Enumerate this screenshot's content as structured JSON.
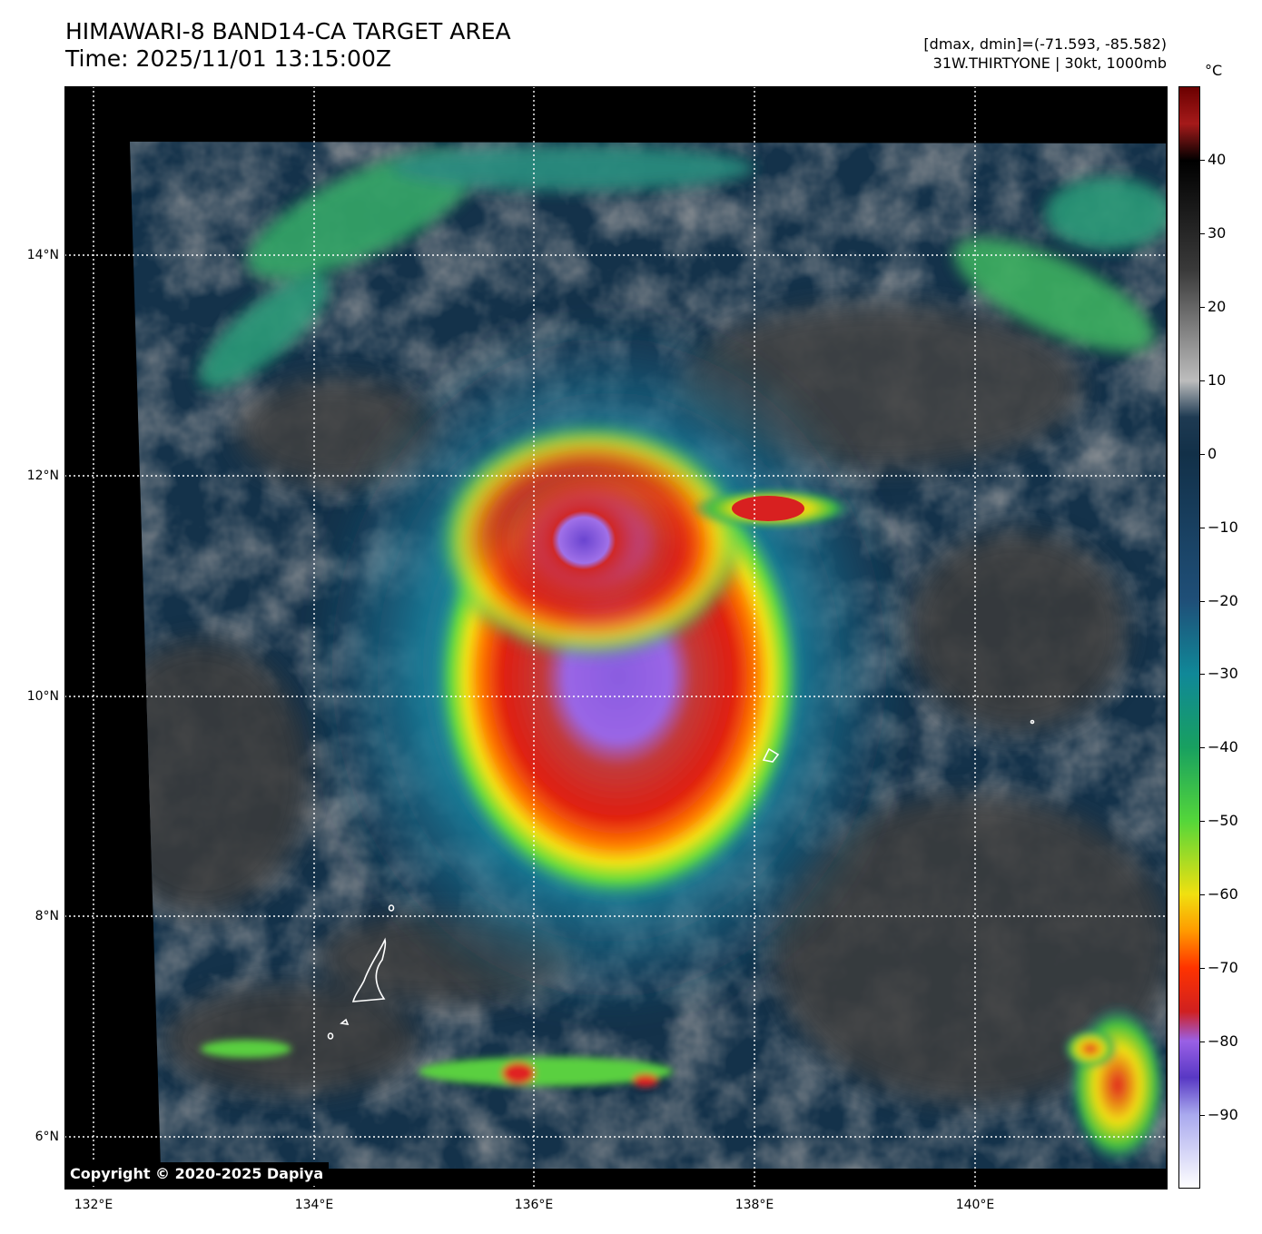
{
  "header": {
    "title_line1": "HIMAWARI-8 BAND14-CA TARGET AREA",
    "title_line2": "Time: 2025/11/01 13:15:00Z",
    "info_line1": "[dmax, dmin]=(-71.593, -85.582)",
    "info_line2": "31W.THIRTYONE | 30kt, 1000mb"
  },
  "axes": {
    "lat_labels": [
      "14°N",
      "12°N",
      "10°N",
      "8°N",
      "6°N"
    ],
    "lon_labels": [
      "132°E",
      "134°E",
      "136°E",
      "138°E",
      "140°E"
    ]
  },
  "colorbar": {
    "unit": "°C",
    "ticks": [
      "40",
      "30",
      "20",
      "10",
      "0",
      "−10",
      "−20",
      "−30",
      "−40",
      "−50",
      "−60",
      "−70",
      "−80",
      "−90"
    ],
    "range": [
      -100,
      50
    ],
    "stops": [
      {
        "t": 50,
        "c": "#6b0000"
      },
      {
        "t": 45,
        "c": "#a51a1a"
      },
      {
        "t": 40,
        "c": "#000000"
      },
      {
        "t": 25,
        "c": "#3a3a3a"
      },
      {
        "t": 10,
        "c": "#bdbdbd"
      },
      {
        "t": 5,
        "c": "#1e3a52"
      },
      {
        "t": 0,
        "c": "#123048"
      },
      {
        "t": -20,
        "c": "#1f4f78"
      },
      {
        "t": -30,
        "c": "#108898"
      },
      {
        "t": -40,
        "c": "#18a060"
      },
      {
        "t": -50,
        "c": "#54d63a"
      },
      {
        "t": -60,
        "c": "#f0e010"
      },
      {
        "t": -65,
        "c": "#ff9a00"
      },
      {
        "t": -70,
        "c": "#ff3300"
      },
      {
        "t": -76,
        "c": "#d02020"
      },
      {
        "t": -80,
        "c": "#9a60e6"
      },
      {
        "t": -85,
        "c": "#5838c4"
      },
      {
        "t": -90,
        "c": "#a8a8ee"
      },
      {
        "t": -100,
        "c": "#ffffff"
      }
    ]
  },
  "copyright": "Copyright © 2020-2025 Dapiya"
}
